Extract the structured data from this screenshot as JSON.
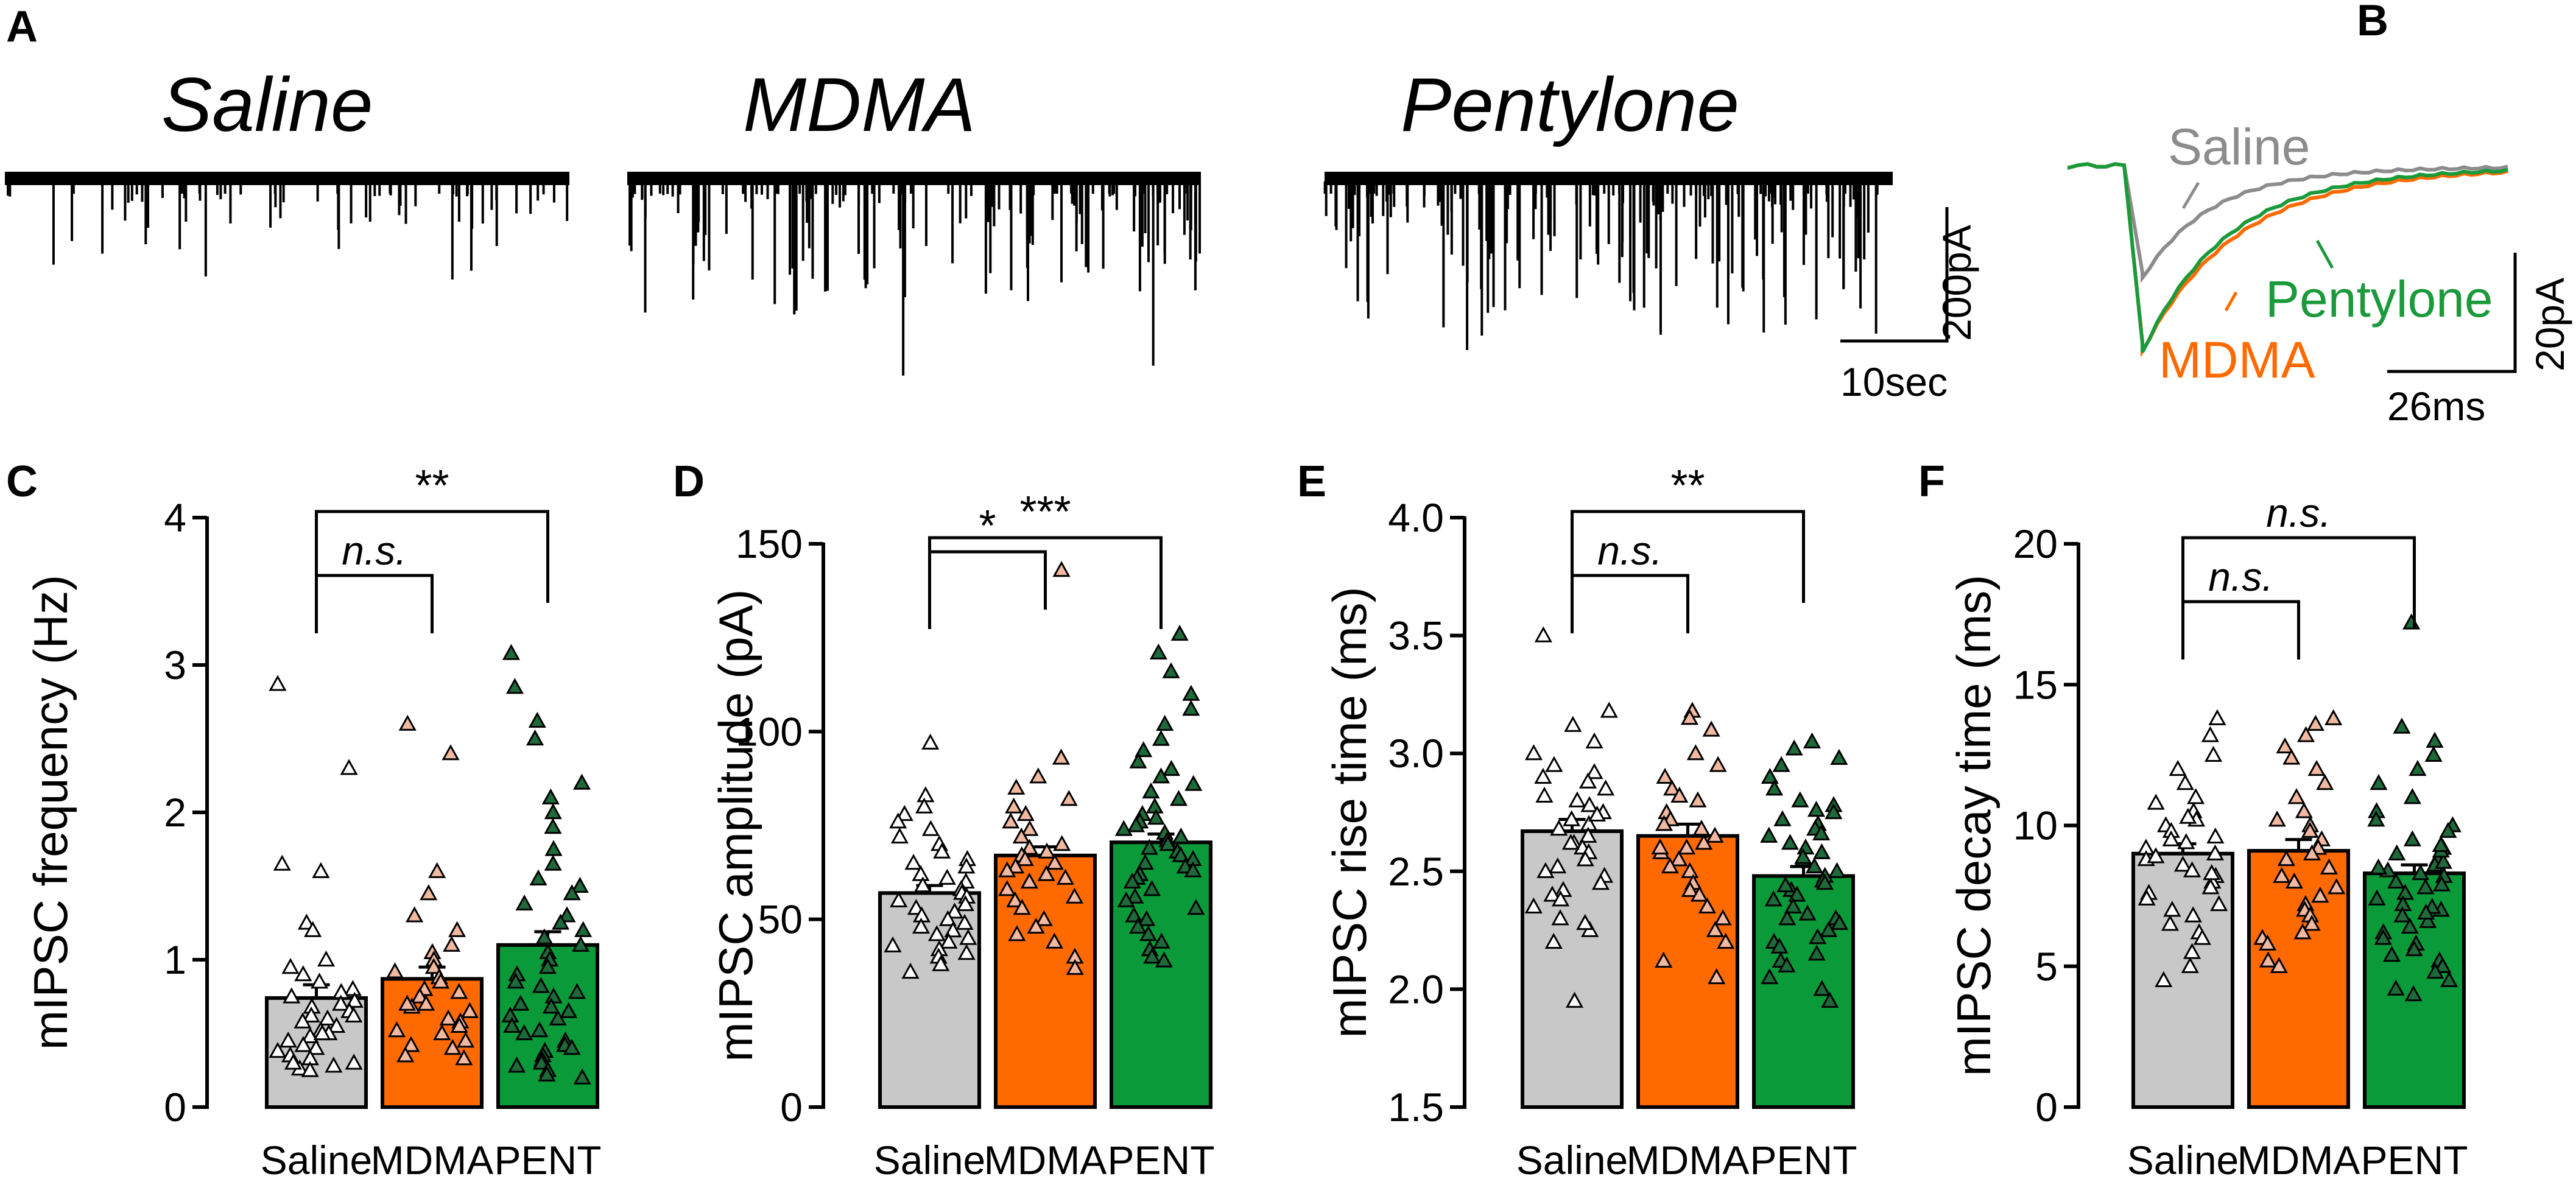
{
  "colors": {
    "saline": "#c8c8c8",
    "mdma": "#ff6a00",
    "pent": "#0a9a3a",
    "trace_saline": "#8c8c8c",
    "trace_mdma": "#ff6a00",
    "trace_pent": "#1a9a3a",
    "text_mdma": "#ff6a00",
    "text_pent": "#1a9a3a",
    "text_saline": "#8c8c8c"
  },
  "panel_a": {
    "label": "A",
    "conditions": [
      "Saline",
      "MDMA",
      "Pentylone"
    ],
    "scale_y": "200pA",
    "scale_x": "10sec"
  },
  "panel_b": {
    "label": "B",
    "legend": {
      "saline": "Saline",
      "mdma": "MDMA",
      "pent": "Pentylone"
    },
    "scale_y": "20pA",
    "scale_x": "26ms"
  },
  "chart_data": [
    {
      "panel": "C",
      "type": "bar",
      "categories": [
        "Saline",
        "MDMA",
        "PENT"
      ],
      "ylabel": "mIPSC frequency (Hz)",
      "ylim": [
        0,
        4
      ],
      "yticks": [
        "0",
        "1",
        "2",
        "3",
        "4"
      ],
      "means": [
        0.74,
        0.87,
        1.1
      ],
      "sems": [
        0.09,
        0.08,
        0.09
      ],
      "points": [
        [
          2.87,
          2.3,
          1.65,
          1.6,
          1.25,
          1.2,
          1.0,
          0.95,
          0.9,
          0.85,
          0.8,
          0.78,
          0.75,
          0.72,
          0.7,
          0.68,
          0.65,
          0.62,
          0.6,
          0.58,
          0.55,
          0.52,
          0.5,
          0.48,
          0.45,
          0.42,
          0.4,
          0.38,
          0.35,
          0.33,
          0.3,
          0.28,
          0.26,
          0.25,
          0.3,
          0.5,
          0.62
        ],
        [
          2.6,
          2.4,
          1.6,
          1.45,
          1.3,
          1.2,
          1.1,
          1.05,
          1.0,
          0.95,
          0.92,
          0.88,
          0.85,
          0.8,
          0.78,
          0.75,
          0.7,
          0.68,
          0.65,
          0.6,
          0.58,
          0.55,
          0.52,
          0.5,
          0.45,
          0.42,
          0.4,
          0.35,
          0.33,
          0.7
        ],
        [
          3.08,
          2.85,
          2.62,
          2.5,
          2.2,
          2.1,
          2.0,
          1.9,
          1.75,
          1.65,
          1.55,
          1.5,
          1.45,
          1.38,
          1.3,
          1.25,
          1.2,
          1.15,
          1.1,
          1.05,
          1.0,
          0.95,
          0.9,
          0.85,
          0.82,
          0.78,
          0.75,
          0.7,
          0.68,
          0.65,
          0.62,
          0.6,
          0.55,
          0.52,
          0.5,
          0.45,
          0.42,
          0.4,
          0.38,
          0.35,
          0.32,
          0.3,
          0.28,
          0.25,
          0.22,
          0.2
        ]
      ],
      "comparisons": [
        {
          "from": 0,
          "to": 1,
          "label": "n.s."
        },
        {
          "from": 0,
          "to": 2,
          "label": "**"
        }
      ]
    },
    {
      "panel": "D",
      "type": "bar",
      "categories": [
        "Saline",
        "MDMA",
        "PENT"
      ],
      "ylabel": "mIPSC amplitude (pA)",
      "ylim": [
        0,
        150
      ],
      "yticks": [
        "0",
        "50",
        "100",
        "150"
      ],
      "means": [
        57,
        67,
        70.5
      ],
      "sems": [
        2.0,
        2.3,
        2.2
      ],
      "points": [
        [
          97,
          83,
          80,
          78,
          76,
          74,
          72,
          70,
          68,
          66,
          65,
          64,
          62,
          61,
          60,
          59,
          58,
          57,
          56,
          55,
          54,
          53,
          52,
          51,
          50,
          49,
          48,
          47,
          46,
          45,
          44,
          43,
          42,
          41,
          40,
          38,
          36
        ],
        [
          143,
          93,
          88,
          85,
          82,
          80,
          78,
          76,
          74,
          72,
          70,
          69,
          68,
          67,
          66,
          65,
          64,
          63,
          62,
          61,
          60,
          58,
          56,
          55,
          53,
          50,
          48,
          46,
          44,
          40,
          37
        ],
        [
          126,
          121,
          116,
          110,
          106,
          102,
          98,
          95,
          92,
          90,
          88,
          86,
          84,
          82,
          80,
          78,
          77,
          76,
          75,
          74,
          73,
          72,
          71,
          70,
          69,
          68,
          67,
          66,
          65,
          64,
          63,
          62,
          61,
          60,
          58,
          56,
          55,
          53,
          51,
          50,
          48,
          46,
          44,
          42,
          40,
          39
        ]
      ],
      "comparisons": [
        {
          "from": 0,
          "to": 1,
          "label": "*"
        },
        {
          "from": 0,
          "to": 2,
          "label": "***"
        }
      ]
    },
    {
      "panel": "E",
      "type": "bar",
      "categories": [
        "Saline",
        "MDMA",
        "PENT"
      ],
      "ylabel": "mIPSC rise time (ms)",
      "ylim": [
        1.5,
        4.0
      ],
      "yticks": [
        "1.5",
        "2.0",
        "2.5",
        "3.0",
        "3.5",
        "4.0"
      ],
      "means": [
        2.67,
        2.65,
        2.48
      ],
      "sems": [
        0.05,
        0.05,
        0.04
      ],
      "points": [
        [
          3.5,
          3.18,
          3.12,
          3.05,
          3.0,
          2.95,
          2.92,
          2.9,
          2.88,
          2.85,
          2.82,
          2.8,
          2.78,
          2.75,
          2.72,
          2.7,
          2.68,
          2.65,
          2.62,
          2.6,
          2.58,
          2.55,
          2.52,
          2.5,
          2.48,
          2.45,
          2.42,
          2.4,
          2.38,
          2.35,
          2.3,
          2.25,
          2.2,
          1.95,
          2.28,
          2.62,
          2.74
        ],
        [
          3.18,
          3.15,
          3.1,
          3.0,
          2.95,
          2.9,
          2.85,
          2.82,
          2.8,
          2.75,
          2.72,
          2.7,
          2.68,
          2.65,
          2.62,
          2.6,
          2.58,
          2.55,
          2.52,
          2.5,
          2.45,
          2.42,
          2.4,
          2.35,
          2.3,
          2.25,
          2.2,
          2.12,
          2.05,
          2.6
        ],
        [
          3.05,
          3.02,
          2.98,
          2.95,
          2.9,
          2.85,
          2.8,
          2.78,
          2.75,
          2.72,
          2.7,
          2.68,
          2.65,
          2.62,
          2.6,
          2.58,
          2.55,
          2.52,
          2.5,
          2.48,
          2.46,
          2.45,
          2.42,
          2.4,
          2.38,
          2.35,
          2.32,
          2.3,
          2.28,
          2.25,
          2.22,
          2.2,
          2.18,
          2.15,
          2.12,
          2.1,
          2.05,
          2.0,
          1.95,
          2.3,
          2.44,
          2.56,
          2.66,
          2.76
        ]
      ],
      "comparisons": [
        {
          "from": 0,
          "to": 1,
          "label": "n.s."
        },
        {
          "from": 0,
          "to": 2,
          "label": "**"
        }
      ]
    },
    {
      "panel": "F",
      "type": "bar",
      "categories": [
        "Saline",
        "MDMA",
        "PENT"
      ],
      "ylabel": "mIPSC decay time (ms)",
      "ylim": [
        0,
        20
      ],
      "yticks": [
        "0",
        "5",
        "10",
        "15",
        "20"
      ],
      "means": [
        9.0,
        9.1,
        8.3
      ],
      "sems": [
        0.35,
        0.4,
        0.3
      ],
      "points": [
        [
          13.8,
          13.2,
          12.5,
          12.0,
          11.5,
          11.0,
          10.8,
          10.5,
          10.2,
          10.0,
          9.8,
          9.6,
          9.4,
          9.2,
          9.0,
          8.8,
          8.6,
          8.4,
          8.2,
          8.0,
          7.8,
          7.6,
          7.4,
          7.2,
          7.0,
          6.8,
          6.5,
          6.2,
          6.0,
          5.5,
          5.0,
          4.5,
          8.9,
          9.5,
          10.3,
          8.3
        ],
        [
          13.8,
          13.6,
          13.2,
          12.8,
          12.4,
          12.0,
          11.5,
          11.0,
          10.5,
          10.2,
          10.0,
          9.8,
          9.5,
          9.2,
          9.0,
          8.8,
          8.5,
          8.2,
          8.0,
          7.8,
          7.5,
          7.2,
          7.0,
          6.8,
          6.5,
          6.2,
          6.0,
          5.8,
          5.2,
          5.0
        ],
        [
          17.2,
          13.5,
          13.0,
          12.5,
          12.0,
          11.5,
          11.0,
          10.5,
          10.2,
          10.0,
          9.8,
          9.5,
          9.2,
          9.0,
          8.8,
          8.6,
          8.4,
          8.2,
          8.0,
          7.8,
          7.6,
          7.4,
          7.2,
          7.0,
          6.8,
          6.6,
          6.4,
          6.2,
          6.0,
          5.8,
          5.6,
          5.4,
          5.2,
          5.0,
          4.8,
          4.5,
          4.2,
          4.0,
          8.3,
          8.7,
          9.1,
          7.9,
          7.1,
          6.9,
          8.5,
          9.3
        ]
      ],
      "comparisons": [
        {
          "from": 0,
          "to": 1,
          "label": "n.s."
        },
        {
          "from": 0,
          "to": 2,
          "label": "n.s."
        }
      ]
    }
  ]
}
